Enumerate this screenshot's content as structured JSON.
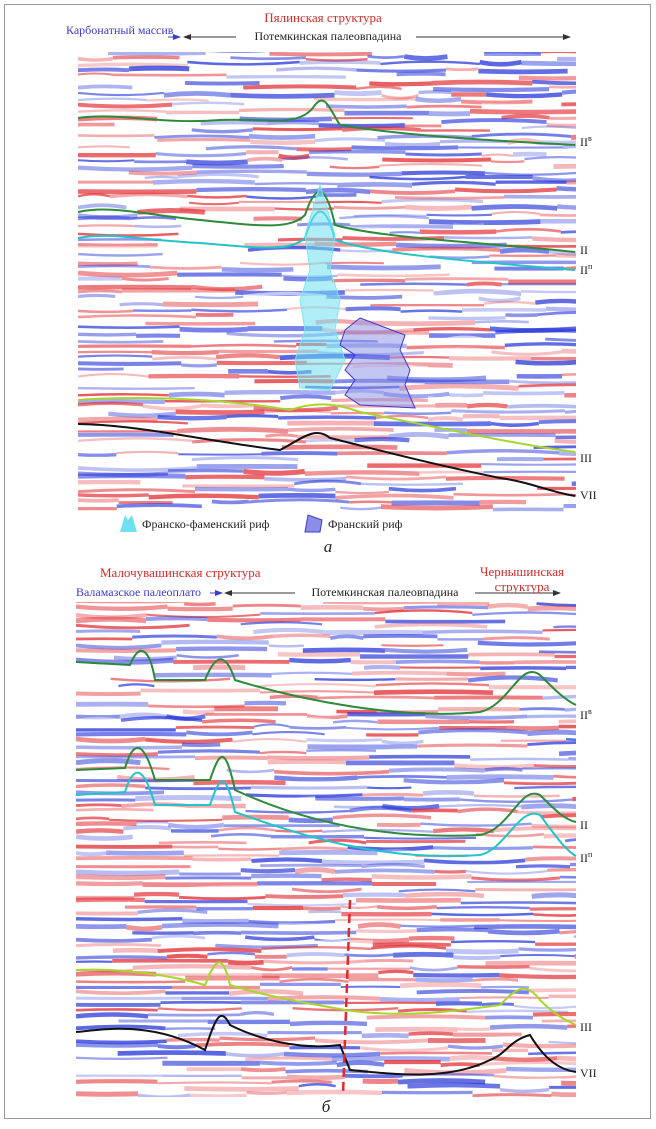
{
  "panel_a": {
    "left_label": "Карбонатный массив",
    "structure_label": "Пялинская структура",
    "trough_label": "Потемкинская палеовпадина",
    "horizons": [
      {
        "base": "II",
        "sup": "в"
      },
      {
        "base": "II"
      },
      {
        "base": "II",
        "sup": "п"
      },
      {
        "base": "III"
      },
      {
        "base": "VII"
      }
    ],
    "legend": [
      "Франско-фаменский риф",
      "Франский риф"
    ],
    "caption": "а"
  },
  "panel_b": {
    "left_structure_label": "Малочувашинская структура",
    "left_label": "Валамазское палеоплато",
    "trough_label": "Потемкинская палеовпадина",
    "right_structure_label": [
      "Чернышинская",
      "структура"
    ],
    "horizons": [
      {
        "base": "II",
        "sup": "в"
      },
      {
        "base": "II"
      },
      {
        "base": "II",
        "sup": "п"
      },
      {
        "base": "III"
      },
      {
        "base": "VII"
      }
    ],
    "caption": "б"
  }
}
